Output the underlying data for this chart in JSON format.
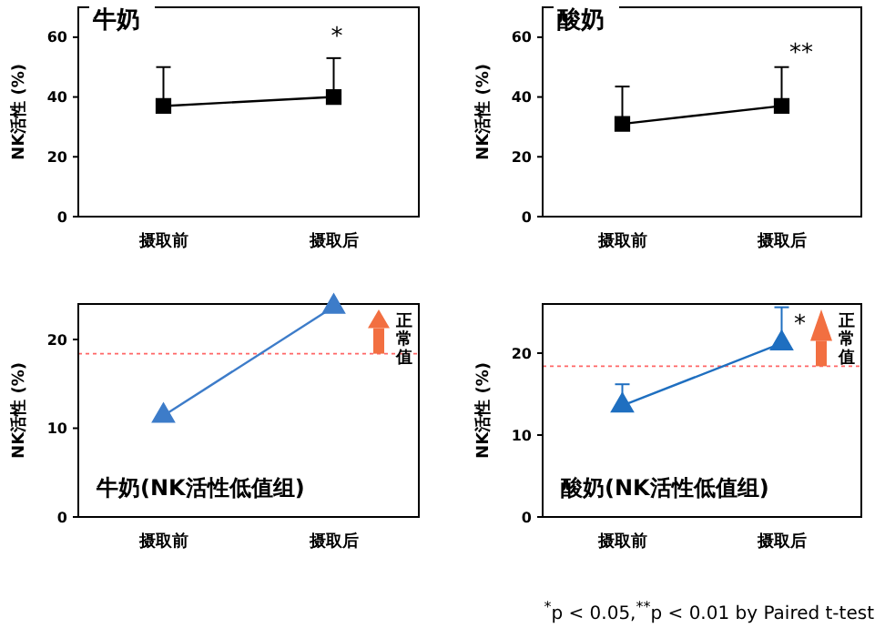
{
  "chart_data": [
    {
      "type": "line",
      "title": "牛奶",
      "ylabel": "NK活性 (%)",
      "categories": [
        "摄取前",
        "摄取后"
      ],
      "ylim": [
        0,
        70
      ],
      "yticks": [
        0,
        20,
        40,
        60
      ],
      "marker": "square",
      "grid": false,
      "series": [
        {
          "color": "#000000",
          "values": [
            37,
            40
          ],
          "errors": [
            [
              37,
              50
            ],
            [
              40,
              53
            ]
          ]
        }
      ],
      "annotations": [
        "*"
      ]
    },
    {
      "type": "line",
      "title": "酸奶",
      "ylabel": "NK活性 (%)",
      "categories": [
        "摄取前",
        "摄取后"
      ],
      "ylim": [
        0,
        70
      ],
      "yticks": [
        0,
        20,
        40,
        60
      ],
      "marker": "square",
      "grid": false,
      "series": [
        {
          "color": "#000000",
          "values": [
            31,
            37
          ],
          "errors": [
            [
              31,
              43.5
            ],
            [
              37,
              50
            ]
          ]
        }
      ],
      "annotations": [
        "**"
      ]
    },
    {
      "type": "line",
      "title": "牛奶(NK活性低值组)",
      "ylabel": "NK活性 (%)",
      "categories": [
        "摄取前",
        "摄取后"
      ],
      "ylim": [
        0,
        24
      ],
      "yticks": [
        0,
        10,
        20
      ],
      "marker": "triangle",
      "grid": false,
      "series": [
        {
          "color": "#3d7cc9",
          "values": [
            11.4,
            23.7
          ]
        }
      ],
      "ref_lines": [
        {
          "axis": "y",
          "value": 18.4,
          "label": "正常值",
          "color": "#ff6666",
          "line_style": "dotted"
        }
      ]
    },
    {
      "type": "line",
      "title": "酸奶(NK活性低值组)",
      "ylabel": "NK活性 (%)",
      "categories": [
        "摄取前",
        "摄取后"
      ],
      "ylim": [
        0,
        26
      ],
      "yticks": [
        0,
        10,
        20
      ],
      "marker": "triangle",
      "grid": false,
      "series": [
        {
          "color": "#1f6fc0",
          "values": [
            13.6,
            21.2
          ],
          "errors": [
            [
              13.6,
              16.2
            ],
            [
              21.2,
              25.6
            ]
          ]
        }
      ],
      "ref_lines": [
        {
          "axis": "y",
          "value": 18.4,
          "label": "正常值",
          "color": "#ff6666",
          "line_style": "dotted"
        }
      ],
      "annotations": [
        "*",
        "$^{*}$p < 0.05,$^{**}$p < 0.01 by Paired t-test"
      ]
    }
  ]
}
